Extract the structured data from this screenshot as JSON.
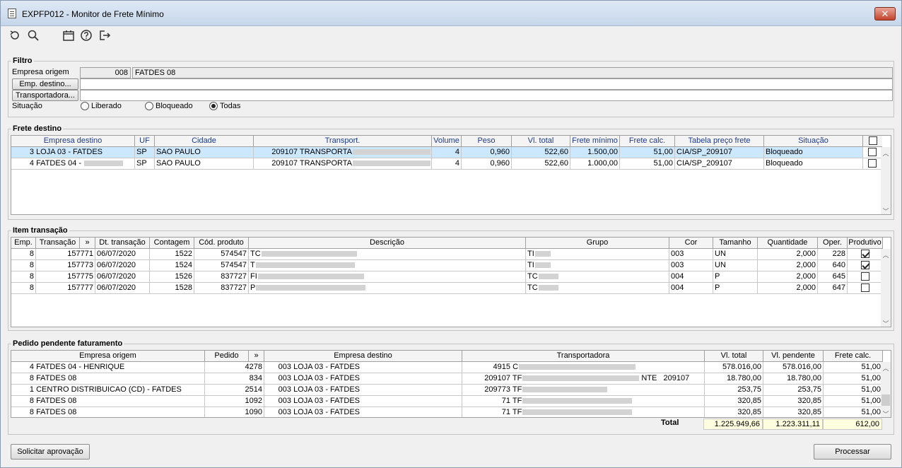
{
  "window": {
    "title": "EXPFP012 - Monitor de Frete Mínimo",
    "close": "✕"
  },
  "filter": {
    "legend": "Filtro",
    "empresa_origem_label": "Empresa origem",
    "empresa_origem_code": "008",
    "empresa_origem_name": "FATDES 08",
    "emp_destino_button": "Emp. destino...",
    "transportadora_button": "Transportadora...",
    "situacao_label": "Situação",
    "situacao_options": [
      "Liberado",
      "Bloqueado",
      "Todas"
    ],
    "situacao_selected": "Todas"
  },
  "frete": {
    "legend": "Frete destino",
    "columns": [
      "Empresa destino",
      "UF",
      "Cidade",
      "Transport.",
      "Volume",
      "Peso",
      "Vl. total",
      "Frete mínimo",
      "Frete calc.",
      "Tabela preço frete",
      "Situação"
    ],
    "rows": [
      {
        "emp": "3",
        "empresa": "LOJA 03 - FATDES",
        "uf": "SP",
        "cidade": "SAO PAULO",
        "tcode": "209107",
        "tname": "TRANSPORTA",
        "volume": "4",
        "peso": "0,960",
        "total": "522,60",
        "minimo": "1.500,00",
        "calc": "51,00",
        "tabela": "CIA/SP_209107",
        "situacao": "Bloqueado",
        "checked": false
      },
      {
        "emp": "4",
        "empresa": "FATDES 04 - ",
        "uf": "SP",
        "cidade": "SAO PAULO",
        "tcode": "209107",
        "tname": "TRANSPORTA",
        "volume": "4",
        "peso": "0,960",
        "total": "522,60",
        "minimo": "1.000,00",
        "calc": "51,00",
        "tabela": "CIA/SP_209107",
        "situacao": "Bloqueado",
        "checked": false
      }
    ]
  },
  "item": {
    "legend": "Item transação",
    "columns": [
      "Emp.",
      "Transação",
      "»",
      "Dt. transação",
      "Contagem",
      "Cód. produto",
      "Descrição",
      "Grupo",
      "Cor",
      "Tamanho",
      "Quantidade",
      "Oper.",
      "Produtivo"
    ],
    "rows": [
      {
        "emp": "8",
        "transacao": "157771",
        "dt": "06/07/2020",
        "contagem": "1522",
        "produto": "574547",
        "desc": "TC",
        "grupo": "TI",
        "cor": "003",
        "tamanho": "UN",
        "qtd": "2,000",
        "oper": "228",
        "produtivo": true
      },
      {
        "emp": "8",
        "transacao": "157773",
        "dt": "06/07/2020",
        "contagem": "1524",
        "produto": "574547",
        "desc": "T",
        "grupo": "TI",
        "cor": "003",
        "tamanho": "UN",
        "qtd": "2,000",
        "oper": "640",
        "produtivo": true
      },
      {
        "emp": "8",
        "transacao": "157775",
        "dt": "06/07/2020",
        "contagem": "1526",
        "produto": "837727",
        "desc": "FI",
        "grupo": "TC",
        "cor": "004",
        "tamanho": "P",
        "qtd": "2,000",
        "oper": "645",
        "produtivo": false
      },
      {
        "emp": "8",
        "transacao": "157777",
        "dt": "06/07/2020",
        "contagem": "1528",
        "produto": "837727",
        "desc": "P",
        "grupo": "TC",
        "cor": "004",
        "tamanho": "P",
        "qtd": "2,000",
        "oper": "647",
        "produtivo": false
      }
    ]
  },
  "pedido": {
    "legend": "Pedido pendente faturamento",
    "columns": [
      "Empresa origem",
      "Pedido",
      "»",
      "Empresa destino",
      "Transportadora",
      "Vl. total",
      "Vl. pendente",
      "Frete calc."
    ],
    "rows": [
      {
        "emp": "4",
        "origem": "FATDES 04 - HENRIQUE",
        "pedido": "4278",
        "dcode": "003",
        "destino": "LOJA 03 - FATDES",
        "tcode": "4915",
        "tname": "C",
        "tsuffix": "",
        "total": "578.016,00",
        "pendente": "578.016,00",
        "frete": "51,00"
      },
      {
        "emp": "8",
        "origem": "FATDES 08",
        "pedido": "834",
        "dcode": "003",
        "destino": "LOJA 03 - FATDES",
        "tcode": "209107",
        "tname": "TF",
        "tsuffix": "NTE   209107",
        "total": "18.780,00",
        "pendente": "18.780,00",
        "frete": "51,00"
      },
      {
        "emp": "1",
        "origem": "CENTRO DISTRIBUICAO (CD) - FATDES",
        "pedido": "2514",
        "dcode": "003",
        "destino": "LOJA 03 - FATDES",
        "tcode": "209773",
        "tname": "TF",
        "tsuffix": "",
        "total": "253,75",
        "pendente": "253,75",
        "frete": "51,00"
      },
      {
        "emp": "8",
        "origem": "FATDES 08",
        "pedido": "1092",
        "dcode": "003",
        "destino": "LOJA 03 - FATDES",
        "tcode": "71",
        "tname": "TF",
        "tsuffix": "",
        "total": "320,85",
        "pendente": "320,85",
        "frete": "51,00"
      },
      {
        "emp": "8",
        "origem": "FATDES 08",
        "pedido": "1090",
        "dcode": "003",
        "destino": "LOJA 03 - FATDES",
        "tcode": "71",
        "tname": "TF",
        "tsuffix": "",
        "total": "320,85",
        "pendente": "320,85",
        "frete": "51,00"
      }
    ],
    "total_label": "Total",
    "total_vl": "1.225.949,66",
    "total_pendente": "1.223.311,11",
    "total_frete": "612,00"
  },
  "footer": {
    "solicitar": "Solicitar aprovação",
    "processar": "Processar"
  },
  "icons": [
    "undo-icon",
    "search-icon",
    "calendar-icon",
    "help-icon",
    "exit-icon"
  ]
}
